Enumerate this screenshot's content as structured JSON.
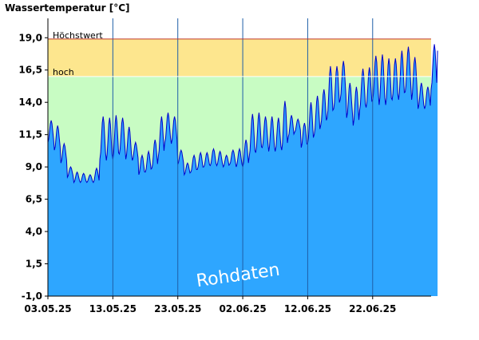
{
  "chart_data": {
    "type": "area",
    "title": "Wassertemperatur [°C]",
    "watermark": "Rohdaten",
    "ylim": [
      -1.0,
      20.5
    ],
    "yticks": [
      "19,0",
      "16,5",
      "14,0",
      "11,5",
      "9,0",
      "6,5",
      "4,0",
      "1,5",
      "-1,0"
    ],
    "ytick_values": [
      19.0,
      16.5,
      14.0,
      11.5,
      9.0,
      6.5,
      4.0,
      1.5,
      -1.0
    ],
    "xticks": [
      "03.05.25",
      "13.05.25",
      "23.05.25",
      "02.06.25",
      "12.06.25",
      "22.06.25"
    ],
    "xtick_days": [
      2,
      12,
      22,
      32,
      42,
      52
    ],
    "xlim_days": [
      2,
      61
    ],
    "bands": [
      {
        "label": "Höchstwert",
        "from": 16.0,
        "to": 18.9,
        "color": "#fde68e"
      },
      {
        "label": "hoch",
        "from": -1.0,
        "to": 16.0,
        "color": "#c8fcc3"
      }
    ],
    "threshold_labels": {
      "max": "Höchstwert",
      "high": "hoch"
    },
    "threshold_values": {
      "max": 18.9,
      "high": 16.0
    },
    "colors": {
      "fill": "#2ea6ff",
      "line": "#0000cc",
      "max_line": "#c0392b",
      "high_line": "#ffffff"
    },
    "series": [
      {
        "min": [
          10.9,
          10.3,
          9.3,
          8.2,
          7.8,
          7.8,
          7.8,
          7.8,
          9.6,
          9.5,
          9.6,
          10.0,
          9.6,
          9.5,
          8.4,
          8.6,
          8.9,
          9.8,
          10.9,
          10.8,
          9.2,
          8.4,
          8.6,
          8.8,
          9.0,
          9.1,
          9.1,
          9.0,
          9.2,
          9.0,
          9.0,
          9.8,
          10.1,
          10.5,
          10.2,
          10.2,
          10.3,
          11.3,
          11.7,
          10.5,
          10.8,
          11.5,
          12.2,
          12.8,
          13.5,
          14.2,
          12.8,
          12.2,
          13.4,
          13.6,
          14.2,
          13.8,
          13.8,
          14.2,
          14.2,
          14.8,
          14.2,
          13.5,
          13.5,
          15.0
        ],
        "max": [
          12.6,
          12.2,
          10.8,
          9.0,
          8.6,
          8.5,
          8.4,
          8.9,
          12.9,
          12.8,
          13.0,
          12.8,
          12.1,
          10.9,
          9.9,
          10.2,
          11.1,
          12.9,
          13.2,
          12.9,
          10.3,
          9.3,
          9.9,
          10.1,
          10.1,
          10.4,
          10.2,
          9.9,
          10.3,
          10.4,
          11.1,
          13.1,
          13.2,
          12.9,
          12.9,
          12.8,
          14.1,
          13.0,
          12.7,
          12.4,
          14.0,
          14.5,
          15.0,
          16.8,
          16.8,
          17.2,
          15.5,
          15.2,
          16.6,
          16.7,
          17.6,
          17.7,
          17.4,
          17.4,
          18.0,
          18.3,
          17.5,
          15.5,
          15.2,
          18.5
        ]
      }
    ]
  }
}
